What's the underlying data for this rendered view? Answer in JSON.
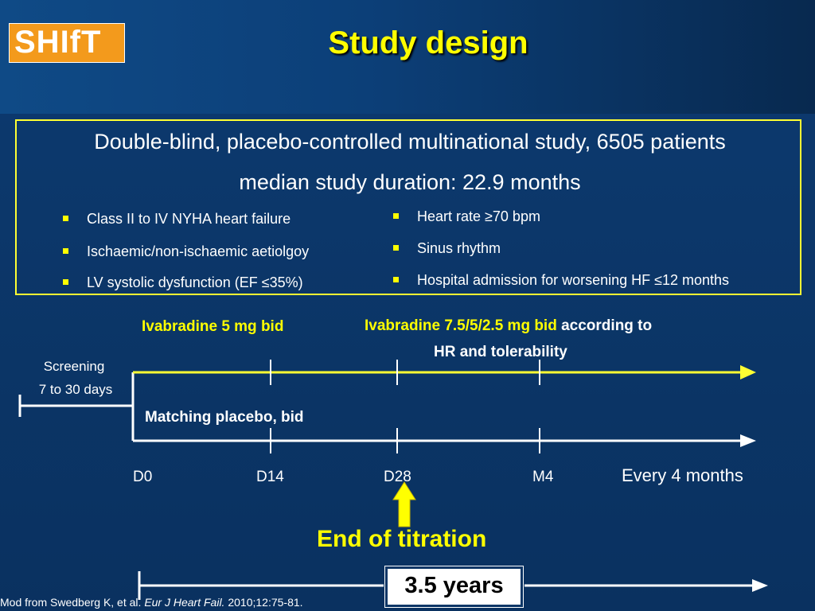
{
  "header": {
    "logo_text": "SHIfT",
    "title": "Study design"
  },
  "design_box": {
    "line1": "Double-blind, placebo-controlled multinational study, 6505 patients",
    "line2": "median study duration: 22.9 months",
    "criteria_left": [
      "Class II to IV NYHA heart failure",
      "Ischaemic/non-ischaemic aetiolgoy",
      "LV systolic dysfunction (EF ≤35%)"
    ],
    "criteria_right": [
      "Heart rate ≥70 bpm",
      "Sinus rhythm",
      "Hospital admission for worsening HF ≤12 months"
    ]
  },
  "timeline": {
    "arm_ivabradine_initial": "Ivabradine 5 mg bid",
    "arm_ivabradine_titrated_yellow": "Ivabradine 7.5/5/2.5 mg bid",
    "arm_ivabradine_titrated_white": "according to",
    "arm_ivabradine_titrated_line2": "HR and tolerability",
    "arm_placebo": "Matching placebo, bid",
    "screening_line1": "Screening",
    "screening_line2": "7 to 30 days",
    "ticks": [
      "D0",
      "D14",
      "D28",
      "M4"
    ],
    "followup": "Every 4 months",
    "end_of_titration": "End of titration",
    "duration": "3.5 years"
  },
  "citation": {
    "prefix": "Mod from Swedberg K, et al. ",
    "journal": "Eur J Heart Fail.",
    "suffix": " 2010;12:75-81."
  },
  "colors": {
    "background": "#0b3566",
    "accent_yellow": "#ffff00",
    "logo_orange": "#f39a1c",
    "text_white": "#ffffff"
  }
}
